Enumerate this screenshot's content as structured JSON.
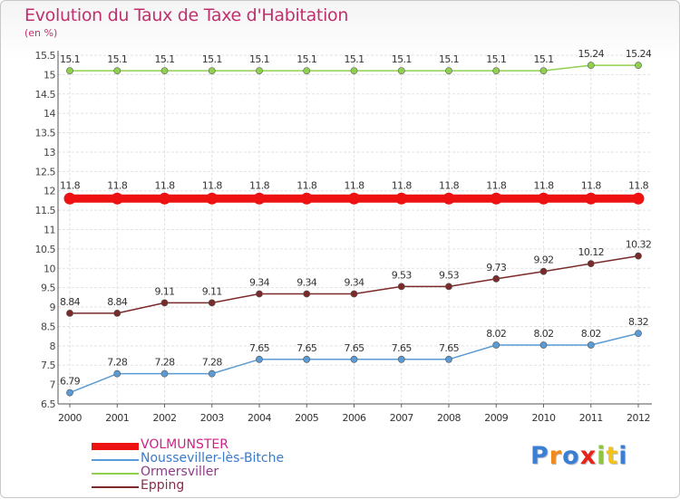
{
  "header": {
    "title": "Evolution du Taux de Taxe d'Habitation",
    "unit": "(en %)"
  },
  "chart_data": {
    "type": "line",
    "title": "Evolution du Taux de Taxe d'Habitation",
    "ylabel": "(en %)",
    "xlabel": "",
    "ylim": [
      6.5,
      15.5
    ],
    "yticks": [
      "6.5",
      "7",
      "7.5",
      "8",
      "8.5",
      "9",
      "9.5",
      "10",
      "10.5",
      "11",
      "11.5",
      "12",
      "12.5",
      "13",
      "13.5",
      "14",
      "14.5",
      "15",
      "15.5"
    ],
    "x": [
      "2000",
      "2001",
      "2002",
      "2003",
      "2004",
      "2005",
      "2006",
      "2007",
      "2008",
      "2009",
      "2010",
      "2011",
      "2012"
    ],
    "grid": true,
    "legend_position": "bottom-left",
    "series": [
      {
        "name": "VOLMUNSTER",
        "color": "#ee1111",
        "values": [
          11.8,
          11.8,
          11.8,
          11.8,
          11.8,
          11.8,
          11.8,
          11.8,
          11.8,
          11.8,
          11.8,
          11.8,
          11.8
        ],
        "labels": [
          "11.8",
          "11.8",
          "11.8",
          "11.8",
          "11.8",
          "11.8",
          "11.8",
          "11.8",
          "11.8",
          "11.8",
          "11.8",
          "11.8",
          "11.8"
        ]
      },
      {
        "name": "Nousseviller-lès-Bitche",
        "color": "#5b9bd5",
        "values": [
          6.79,
          7.28,
          7.28,
          7.28,
          7.65,
          7.65,
          7.65,
          7.65,
          7.65,
          8.02,
          8.02,
          8.02,
          8.32
        ],
        "labels": [
          "6.79",
          "7.28",
          "7.28",
          "7.28",
          "7.65",
          "7.65",
          "7.65",
          "7.65",
          "7.65",
          "8.02",
          "8.02",
          "8.02",
          "8.32"
        ]
      },
      {
        "name": "Ormersviller",
        "color": "#8fd14f",
        "values": [
          15.1,
          15.1,
          15.1,
          15.1,
          15.1,
          15.1,
          15.1,
          15.1,
          15.1,
          15.1,
          15.1,
          15.24,
          15.24
        ],
        "labels": [
          "15.1",
          "15.1",
          "15.1",
          "15.1",
          "15.1",
          "15.1",
          "15.1",
          "15.1",
          "15.1",
          "15.1",
          "15.1",
          "15.24",
          "15.24"
        ]
      },
      {
        "name": "Epping",
        "color": "#7b2a2a",
        "values": [
          8.84,
          8.84,
          9.11,
          9.11,
          9.34,
          9.34,
          9.34,
          9.53,
          9.53,
          9.73,
          9.92,
          10.12,
          10.32
        ],
        "labels": [
          "8.84",
          "8.84",
          "9.11",
          "9.11",
          "9.34",
          "9.34",
          "9.34",
          "9.53",
          "9.53",
          "9.73",
          "9.92",
          "10.12",
          "10.32"
        ]
      }
    ]
  },
  "logo": {
    "letters": [
      "P",
      "r",
      "o",
      "x",
      "i",
      "t",
      "i"
    ],
    "colors": [
      "#3b7fd4",
      "#f08a1c",
      "#3b7fd4",
      "#e8231c",
      "#8cc63e",
      "#f5c21b",
      "#3b7fd4"
    ]
  }
}
